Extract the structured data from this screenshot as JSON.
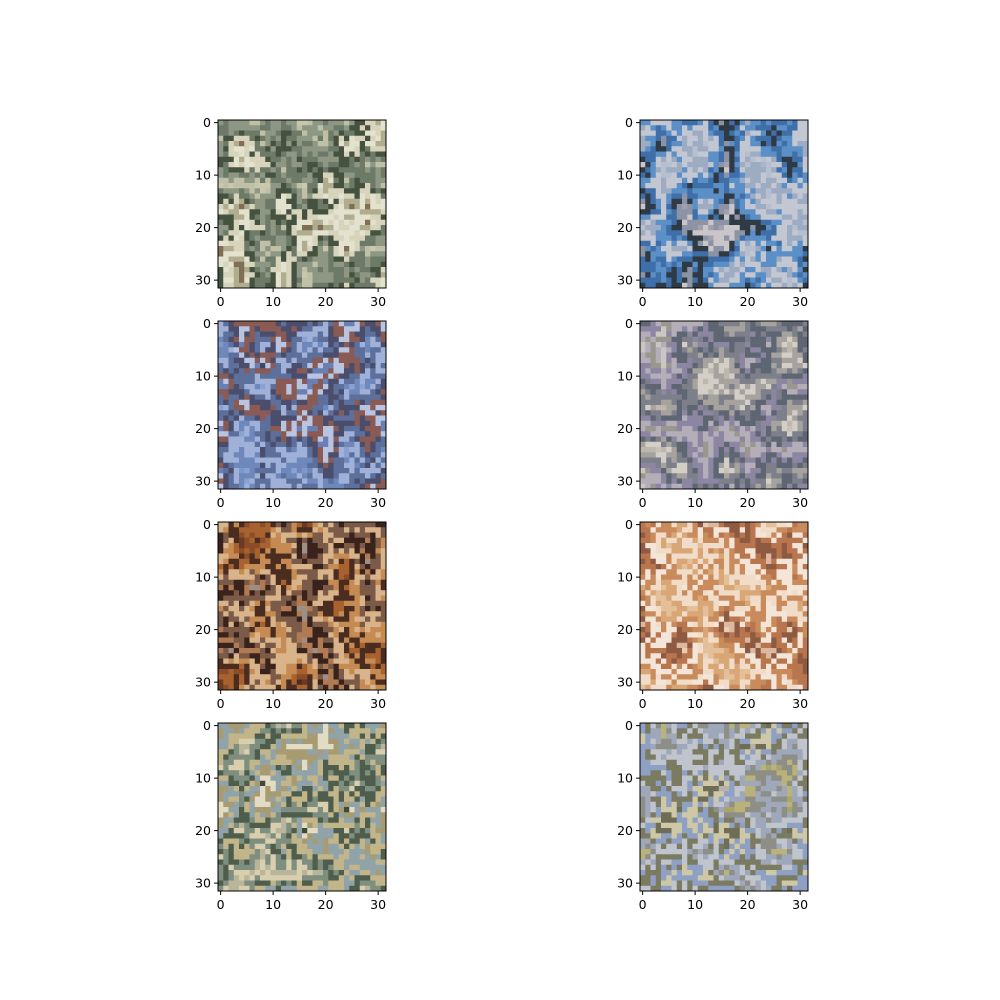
{
  "figure": {
    "background": "#ffffff",
    "panels": [
      {
        "id": "sample-1",
        "palette": [
          "#c9c7ae",
          "#bfc0a6",
          "#8e9784",
          "#6d7a68",
          "#44523f",
          "#d8d4bc",
          "#e3e2cf",
          "#b0ad8f",
          "#7f6f55",
          "#cfc8a8"
        ],
        "x_ticks": [
          "0",
          "10",
          "20",
          "30"
        ],
        "y_ticks": [
          "0",
          "10",
          "20",
          "30"
        ]
      },
      {
        "id": "sample-2",
        "palette": [
          "#aab5c9",
          "#b6bfd0",
          "#9eacc3",
          "#c3c7d2",
          "#5b8fc7",
          "#3f6fa8",
          "#2f3a44",
          "#8c93a4",
          "#c9c5c8",
          "#a39fae"
        ],
        "x_ticks": [
          "0",
          "10",
          "20",
          "30"
        ],
        "y_ticks": [
          "0",
          "10",
          "20",
          "30"
        ]
      },
      {
        "id": "sample-3",
        "palette": [
          "#7f97c9",
          "#8aa2d2",
          "#6f88bb",
          "#9fb1d8",
          "#5d6f9b",
          "#4a4e6c",
          "#8a5a55",
          "#b8c4e0",
          "#6a7fb3",
          "#3e4766"
        ],
        "x_ticks": [
          "0",
          "10",
          "20",
          "30"
        ],
        "y_ticks": [
          "0",
          "10",
          "20",
          "30"
        ]
      },
      {
        "id": "sample-4",
        "palette": [
          "#c7c1b6",
          "#bdb7ad",
          "#d3cec6",
          "#a6a39f",
          "#7d7f8a",
          "#5f6673",
          "#8c86a3",
          "#b3aeb8",
          "#9a978f",
          "#cbc6c0"
        ],
        "x_ticks": [
          "0",
          "10",
          "20",
          "30"
        ],
        "y_ticks": [
          "0",
          "10",
          "20",
          "30"
        ]
      },
      {
        "id": "sample-5",
        "palette": [
          "#6b3a22",
          "#8a4d27",
          "#a8622f",
          "#4a2c20",
          "#c68b52",
          "#d9b48a",
          "#7b5a48",
          "#3a231c",
          "#b07a52",
          "#9c8f86"
        ],
        "x_ticks": [
          "0",
          "10",
          "20",
          "30"
        ],
        "y_ticks": [
          "0",
          "10",
          "20",
          "30"
        ]
      },
      {
        "id": "sample-6",
        "palette": [
          "#ead2b8",
          "#e4c09a",
          "#d9a676",
          "#f0dcc8",
          "#c98b5c",
          "#f3e6d8",
          "#b9764e",
          "#8e5a42",
          "#dcb8a0",
          "#e9cdb0"
        ],
        "x_ticks": [
          "0",
          "10",
          "20",
          "30"
        ],
        "y_ticks": [
          "0",
          "10",
          "20",
          "30"
        ]
      },
      {
        "id": "sample-7",
        "palette": [
          "#9aa79a",
          "#b8b59a",
          "#d9cfae",
          "#7e8f80",
          "#4f5e4c",
          "#c3b58a",
          "#8fa3a8",
          "#a89b72",
          "#e3dcc4",
          "#3f4a3c"
        ],
        "x_ticks": [
          "0",
          "10",
          "20",
          "30"
        ],
        "y_ticks": [
          "0",
          "10",
          "20",
          "30"
        ]
      },
      {
        "id": "sample-8",
        "palette": [
          "#a8a46a",
          "#b9b27a",
          "#8d8f86",
          "#9fa7bb",
          "#c0c4cc",
          "#7b7b62",
          "#8ea0c4",
          "#cfc8a6",
          "#6f6d55",
          "#b5b3a8"
        ],
        "x_ticks": [
          "0",
          "10",
          "20",
          "30"
        ],
        "y_ticks": [
          "0",
          "10",
          "20",
          "30"
        ]
      }
    ]
  }
}
